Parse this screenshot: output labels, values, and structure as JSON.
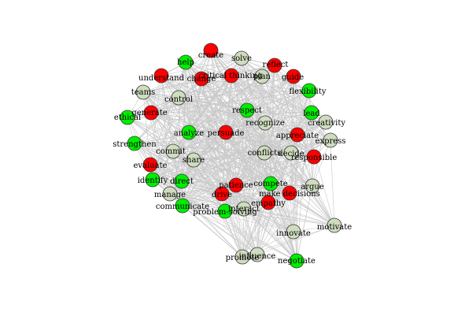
{
  "colors": {
    "background": "#ffffff",
    "edge": "#c8c8c8",
    "red": "#ff0000",
    "green": "#00ee00",
    "beige": "#cfdcbf",
    "label": "#000000"
  },
  "nodes": [
    {
      "id": "create",
      "label": "create",
      "group": "red"
    },
    {
      "id": "solve",
      "label": "solve",
      "group": "beige"
    },
    {
      "id": "help",
      "label": "help",
      "group": "green"
    },
    {
      "id": "reflect",
      "label": "reflect",
      "group": "red"
    },
    {
      "id": "understand",
      "label": "understand",
      "group": "red"
    },
    {
      "id": "critical-thinking",
      "label": "critical thinking",
      "group": "red"
    },
    {
      "id": "plan",
      "label": "plan",
      "group": "beige"
    },
    {
      "id": "guide",
      "label": "guide",
      "group": "red"
    },
    {
      "id": "change",
      "label": "change",
      "group": "red"
    },
    {
      "id": "teams",
      "label": "teams",
      "group": "beige"
    },
    {
      "id": "control",
      "label": "control",
      "group": "beige"
    },
    {
      "id": "flexibility",
      "label": "flexibility",
      "group": "green"
    },
    {
      "id": "generate",
      "label": "generate",
      "group": "red"
    },
    {
      "id": "respect",
      "label": "respect",
      "group": "green"
    },
    {
      "id": "lead",
      "label": "lead",
      "group": "green"
    },
    {
      "id": "ethical",
      "label": "ethical",
      "group": "green"
    },
    {
      "id": "recognize",
      "label": "recognize",
      "group": "beige"
    },
    {
      "id": "creativity",
      "label": "creativity",
      "group": "beige"
    },
    {
      "id": "analyze",
      "label": "analyze",
      "group": "green"
    },
    {
      "id": "persuade",
      "label": "persuade",
      "group": "red"
    },
    {
      "id": "appreciate",
      "label": "appreciate",
      "group": "red"
    },
    {
      "id": "express",
      "label": "express",
      "group": "beige"
    },
    {
      "id": "strengthen",
      "label": "strengthen",
      "group": "green"
    },
    {
      "id": "commit",
      "label": "commit",
      "group": "beige"
    },
    {
      "id": "conflicts",
      "label": "conflicts",
      "group": "beige"
    },
    {
      "id": "decide",
      "label": "decide",
      "group": "beige"
    },
    {
      "id": "responsible",
      "label": "responsible",
      "group": "red"
    },
    {
      "id": "share",
      "label": "share",
      "group": "beige"
    },
    {
      "id": "evaluate",
      "label": "evaluate",
      "group": "red"
    },
    {
      "id": "identify",
      "label": "identify",
      "group": "green"
    },
    {
      "id": "direct",
      "label": "direct",
      "group": "green"
    },
    {
      "id": "patience",
      "label": "patience",
      "group": "red"
    },
    {
      "id": "compete",
      "label": "compete",
      "group": "green"
    },
    {
      "id": "argue",
      "label": "argue",
      "group": "beige"
    },
    {
      "id": "manage",
      "label": "manage",
      "group": "beige"
    },
    {
      "id": "drive",
      "label": "drive",
      "group": "red"
    },
    {
      "id": "make-decisions",
      "label": "make decisions",
      "group": "red"
    },
    {
      "id": "empathy",
      "label": "empathy",
      "group": "red"
    },
    {
      "id": "communicate",
      "label": "communicate",
      "group": "green"
    },
    {
      "id": "interact",
      "label": "interact",
      "group": "beige"
    },
    {
      "id": "problem-solving",
      "label": "problem-solving",
      "group": "green"
    },
    {
      "id": "motivate",
      "label": "motivate",
      "group": "beige"
    },
    {
      "id": "innovate",
      "label": "innovate",
      "group": "beige"
    },
    {
      "id": "promote",
      "label": "promote",
      "group": "beige"
    },
    {
      "id": "influence",
      "label": "influence",
      "group": "beige"
    },
    {
      "id": "negotiate",
      "label": "negotiate",
      "group": "green"
    }
  ]
}
